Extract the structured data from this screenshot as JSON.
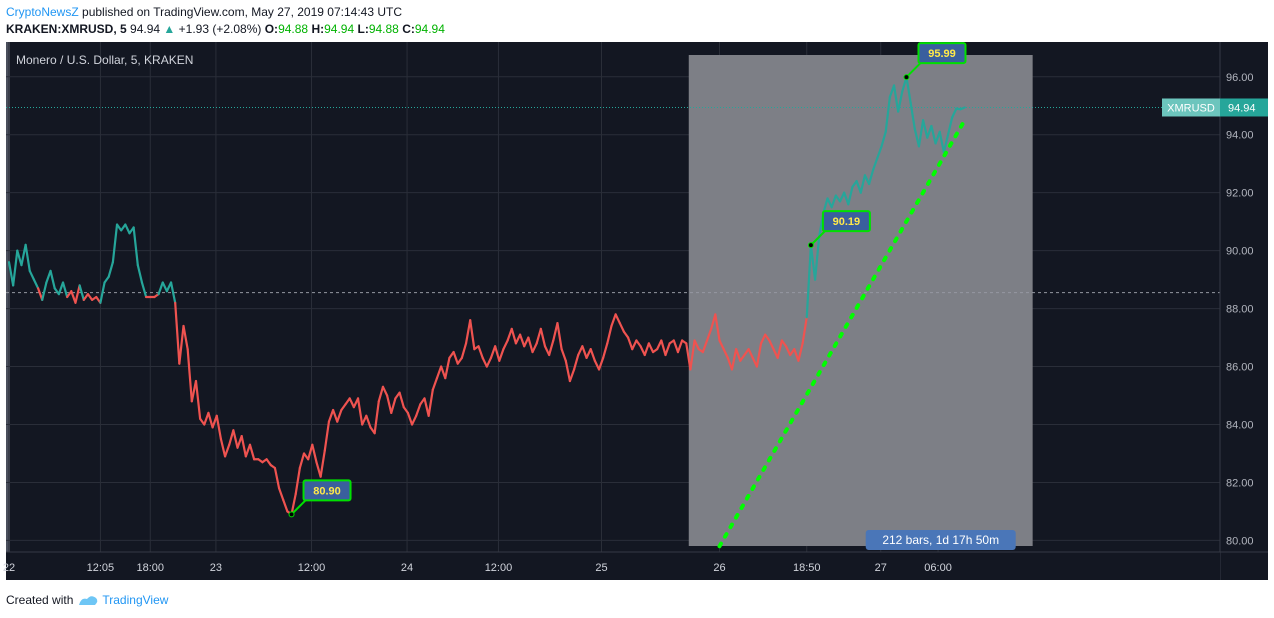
{
  "header": {
    "publisher": "CryptoNewsZ",
    "published_text": " published on TradingView.com, May 27, 2019 07:14:43 UTC",
    "symbol": "KRAKEN:XMRUSD, 5",
    "last": "94.94",
    "change": "+1.93 (+2.08%)",
    "o_label": "O:",
    "o_value": "94.88",
    "h_label": "H:",
    "h_value": "94.94",
    "l_label": "L:",
    "l_value": "94.88",
    "c_label": "C:",
    "c_value": "94.94"
  },
  "footer": {
    "created_with": "Created with",
    "brand": "TradingView"
  },
  "colors": {
    "background": "#131722",
    "up_line": "#26a69a",
    "down_line": "#ef5350",
    "shade": "#7d7f86",
    "projection": "#00ff00",
    "label_fill": "#3a5f9e"
  },
  "chart_data": {
    "type": "line",
    "title": "Monero / U.S. Dollar, 5, KRAKEN",
    "xlabel": "",
    "ylabel": "",
    "ylim": [
      79.6,
      97.2
    ],
    "grid": true,
    "y_ticks": [
      "80.00",
      "82.00",
      "84.00",
      "86.00",
      "88.00",
      "90.00",
      "92.00",
      "94.00",
      "96.00"
    ],
    "x_ticks": [
      {
        "label": "22",
        "t": 0
      },
      {
        "label": "12:05",
        "t": 0.11
      },
      {
        "label": "18:00",
        "t": 0.17
      },
      {
        "label": "23",
        "t": 0.249
      },
      {
        "label": "12:00",
        "t": 0.364
      },
      {
        "label": "24",
        "t": 0.479
      },
      {
        "label": "12:00",
        "t": 0.589
      },
      {
        "label": "25",
        "t": 0.713
      },
      {
        "label": "26",
        "t": 0.855
      },
      {
        "label": "18:50",
        "t": 0.96
      },
      {
        "label": "27",
        "t": 1.049
      },
      {
        "label": "06:00",
        "t": 1.118
      }
    ],
    "baseline": 88.55,
    "last_price": 94.94,
    "price_label": "XMRUSD",
    "price_value": "94.94",
    "series": [
      {
        "values": [
          [
            0.0,
            89.6
          ],
          [
            0.005,
            88.8
          ],
          [
            0.01,
            90.0
          ],
          [
            0.015,
            89.5
          ],
          [
            0.02,
            90.2
          ],
          [
            0.025,
            89.3
          ],
          [
            0.03,
            89.0
          ],
          [
            0.035,
            88.7
          ],
          [
            0.04,
            88.3
          ],
          [
            0.045,
            88.9
          ],
          [
            0.05,
            89.3
          ],
          [
            0.055,
            88.7
          ],
          [
            0.06,
            88.5
          ],
          [
            0.065,
            88.9
          ],
          [
            0.07,
            88.4
          ],
          [
            0.075,
            88.6
          ],
          [
            0.08,
            88.2
          ],
          [
            0.085,
            88.8
          ],
          [
            0.09,
            88.3
          ],
          [
            0.095,
            88.5
          ],
          [
            0.1,
            88.3
          ],
          [
            0.105,
            88.4
          ],
          [
            0.11,
            88.2
          ],
          [
            0.115,
            88.9
          ],
          [
            0.12,
            89.1
          ],
          [
            0.125,
            89.6
          ],
          [
            0.13,
            90.9
          ],
          [
            0.135,
            90.7
          ],
          [
            0.14,
            90.9
          ],
          [
            0.145,
            90.6
          ],
          [
            0.15,
            90.8
          ],
          [
            0.155,
            89.5
          ],
          [
            0.16,
            88.9
          ],
          [
            0.165,
            88.4
          ],
          [
            0.17,
            88.4
          ],
          [
            0.175,
            88.4
          ],
          [
            0.18,
            88.5
          ],
          [
            0.185,
            88.9
          ],
          [
            0.19,
            88.6
          ],
          [
            0.195,
            88.9
          ],
          [
            0.2,
            88.2
          ],
          [
            0.205,
            86.1
          ],
          [
            0.21,
            87.4
          ],
          [
            0.215,
            86.6
          ],
          [
            0.22,
            84.8
          ],
          [
            0.225,
            85.5
          ],
          [
            0.23,
            84.2
          ],
          [
            0.235,
            84.0
          ],
          [
            0.24,
            84.4
          ],
          [
            0.245,
            83.9
          ],
          [
            0.25,
            84.3
          ],
          [
            0.255,
            83.5
          ],
          [
            0.26,
            82.9
          ],
          [
            0.265,
            83.3
          ],
          [
            0.27,
            83.8
          ],
          [
            0.275,
            83.2
          ],
          [
            0.28,
            83.6
          ],
          [
            0.285,
            82.9
          ],
          [
            0.29,
            83.3
          ],
          [
            0.295,
            82.8
          ],
          [
            0.3,
            82.8
          ],
          [
            0.305,
            82.7
          ],
          [
            0.31,
            82.8
          ],
          [
            0.315,
            82.6
          ],
          [
            0.32,
            82.5
          ],
          [
            0.325,
            81.8
          ],
          [
            0.33,
            81.4
          ],
          [
            0.335,
            81.0
          ],
          [
            0.34,
            80.9
          ],
          [
            0.345,
            81.6
          ],
          [
            0.35,
            82.5
          ],
          [
            0.355,
            83.0
          ],
          [
            0.36,
            82.8
          ],
          [
            0.365,
            83.3
          ],
          [
            0.37,
            82.7
          ],
          [
            0.375,
            82.2
          ],
          [
            0.38,
            83.1
          ],
          [
            0.385,
            84.1
          ],
          [
            0.39,
            84.5
          ],
          [
            0.395,
            84.1
          ],
          [
            0.4,
            84.5
          ],
          [
            0.405,
            84.7
          ],
          [
            0.41,
            84.9
          ],
          [
            0.415,
            84.6
          ],
          [
            0.42,
            84.9
          ],
          [
            0.425,
            84.0
          ],
          [
            0.43,
            84.3
          ],
          [
            0.435,
            83.9
          ],
          [
            0.44,
            83.7
          ],
          [
            0.445,
            84.8
          ],
          [
            0.45,
            85.3
          ],
          [
            0.455,
            85.0
          ],
          [
            0.46,
            84.4
          ],
          [
            0.465,
            84.9
          ],
          [
            0.47,
            85.1
          ],
          [
            0.475,
            84.6
          ],
          [
            0.48,
            84.4
          ],
          [
            0.485,
            84.0
          ],
          [
            0.49,
            84.3
          ],
          [
            0.495,
            84.7
          ],
          [
            0.5,
            84.9
          ],
          [
            0.505,
            84.3
          ],
          [
            0.51,
            85.2
          ],
          [
            0.515,
            85.6
          ],
          [
            0.52,
            86.0
          ],
          [
            0.525,
            85.6
          ],
          [
            0.53,
            86.3
          ],
          [
            0.535,
            86.5
          ],
          [
            0.54,
            86.1
          ],
          [
            0.545,
            86.3
          ],
          [
            0.55,
            86.8
          ],
          [
            0.555,
            87.6
          ],
          [
            0.56,
            86.6
          ],
          [
            0.565,
            86.7
          ],
          [
            0.57,
            86.3
          ],
          [
            0.575,
            86.0
          ],
          [
            0.58,
            86.3
          ],
          [
            0.585,
            86.7
          ],
          [
            0.59,
            86.2
          ],
          [
            0.595,
            86.6
          ],
          [
            0.6,
            86.9
          ],
          [
            0.605,
            87.3
          ],
          [
            0.61,
            86.8
          ],
          [
            0.615,
            87.1
          ],
          [
            0.62,
            86.7
          ],
          [
            0.625,
            87.0
          ],
          [
            0.63,
            86.5
          ],
          [
            0.635,
            86.8
          ],
          [
            0.64,
            87.3
          ],
          [
            0.645,
            86.7
          ],
          [
            0.65,
            86.4
          ],
          [
            0.655,
            86.9
          ],
          [
            0.66,
            87.5
          ],
          [
            0.665,
            86.6
          ],
          [
            0.67,
            86.2
          ],
          [
            0.675,
            85.5
          ],
          [
            0.68,
            85.9
          ],
          [
            0.685,
            86.4
          ],
          [
            0.69,
            86.7
          ],
          [
            0.695,
            86.3
          ],
          [
            0.7,
            86.6
          ],
          [
            0.705,
            86.2
          ],
          [
            0.71,
            85.9
          ],
          [
            0.715,
            86.3
          ],
          [
            0.72,
            86.8
          ],
          [
            0.725,
            87.4
          ],
          [
            0.73,
            87.8
          ],
          [
            0.735,
            87.5
          ],
          [
            0.74,
            87.2
          ],
          [
            0.745,
            87.0
          ],
          [
            0.75,
            86.6
          ],
          [
            0.755,
            86.9
          ],
          [
            0.76,
            86.7
          ],
          [
            0.765,
            86.4
          ],
          [
            0.77,
            86.8
          ],
          [
            0.775,
            86.5
          ],
          [
            0.78,
            86.6
          ],
          [
            0.785,
            86.9
          ],
          [
            0.79,
            86.4
          ],
          [
            0.795,
            86.8
          ],
          [
            0.8,
            86.9
          ],
          [
            0.805,
            86.5
          ],
          [
            0.81,
            86.9
          ],
          [
            0.815,
            86.8
          ],
          [
            0.82,
            85.9
          ],
          [
            0.825,
            86.9
          ],
          [
            0.83,
            86.6
          ],
          [
            0.835,
            86.5
          ],
          [
            0.84,
            86.9
          ],
          [
            0.845,
            87.3
          ],
          [
            0.85,
            87.8
          ],
          [
            0.855,
            86.9
          ],
          [
            0.86,
            86.6
          ],
          [
            0.865,
            86.3
          ],
          [
            0.87,
            85.9
          ],
          [
            0.875,
            86.6
          ],
          [
            0.88,
            86.2
          ],
          [
            0.885,
            86.4
          ],
          [
            0.89,
            86.6
          ],
          [
            0.895,
            86.3
          ],
          [
            0.9,
            86.0
          ],
          [
            0.905,
            86.8
          ],
          [
            0.91,
            87.1
          ],
          [
            0.915,
            86.9
          ],
          [
            0.92,
            86.6
          ],
          [
            0.925,
            86.3
          ],
          [
            0.93,
            86.9
          ],
          [
            0.935,
            86.7
          ],
          [
            0.94,
            86.4
          ],
          [
            0.945,
            86.6
          ],
          [
            0.95,
            86.2
          ],
          [
            0.955,
            86.8
          ],
          [
            0.96,
            87.7
          ],
          [
            0.965,
            90.19
          ],
          [
            0.97,
            89.0
          ],
          [
            0.975,
            90.5
          ],
          [
            0.98,
            91.3
          ],
          [
            0.985,
            91.8
          ],
          [
            0.99,
            91.5
          ],
          [
            0.995,
            91.9
          ],
          [
            1.0,
            91.7
          ],
          [
            1.005,
            92.0
          ],
          [
            1.01,
            91.6
          ],
          [
            1.015,
            92.2
          ],
          [
            1.02,
            92.4
          ],
          [
            1.025,
            92.0
          ],
          [
            1.03,
            92.6
          ],
          [
            1.035,
            92.3
          ],
          [
            1.04,
            92.8
          ],
          [
            1.045,
            93.2
          ],
          [
            1.05,
            93.6
          ],
          [
            1.055,
            94.1
          ],
          [
            1.06,
            95.3
          ],
          [
            1.065,
            95.7
          ],
          [
            1.07,
            94.8
          ],
          [
            1.075,
            95.5
          ],
          [
            1.08,
            95.99
          ],
          [
            1.085,
            95.1
          ],
          [
            1.09,
            94.2
          ],
          [
            1.095,
            93.6
          ],
          [
            1.1,
            94.5
          ],
          [
            1.105,
            93.9
          ],
          [
            1.11,
            94.3
          ],
          [
            1.115,
            93.7
          ],
          [
            1.12,
            94.1
          ],
          [
            1.125,
            93.4
          ],
          [
            1.13,
            94.0
          ],
          [
            1.135,
            94.6
          ],
          [
            1.14,
            94.9
          ],
          [
            1.145,
            94.88
          ],
          [
            1.15,
            94.94
          ]
        ]
      }
    ],
    "annotations": [
      {
        "text": "80.90",
        "t": 0.34,
        "value": 80.9
      },
      {
        "text": "90.19",
        "t": 0.965,
        "value": 90.19
      },
      {
        "text": "95.99",
        "t": 1.08,
        "value": 95.99
      }
    ],
    "projection": {
      "from": [
        0.855,
        79.8
      ],
      "to": [
        1.15,
        94.5
      ]
    },
    "range_label": "212 bars, 1d 17h 50m",
    "range_t": [
      0.818,
      1.15
    ]
  }
}
